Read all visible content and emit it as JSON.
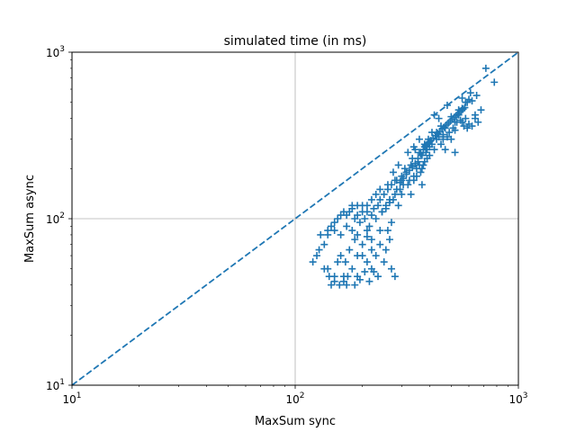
{
  "chart_data": {
    "type": "scatter",
    "title": "simulated time (in ms)",
    "xlabel": "MaxSum sync",
    "ylabel": "MaxSum async",
    "xscale": "log",
    "yscale": "log",
    "xlim": [
      10,
      1000
    ],
    "ylim": [
      10,
      1000
    ],
    "grid": "major decades only",
    "legend": "none",
    "marker": "plus",
    "color": "#1f77b4",
    "x_ticks": [
      {
        "value": 10,
        "base": "10",
        "exp": "1"
      },
      {
        "value": 100,
        "base": "10",
        "exp": "2"
      },
      {
        "value": 1000,
        "base": "10",
        "exp": "3"
      }
    ],
    "y_ticks": [
      {
        "value": 10,
        "base": "10",
        "exp": "1"
      },
      {
        "value": 100,
        "base": "10",
        "exp": "2"
      },
      {
        "value": 1000,
        "base": "10",
        "exp": "3"
      }
    ],
    "reference_line": {
      "style": "dashed",
      "from": [
        10,
        10
      ],
      "to": [
        1000,
        1000
      ]
    },
    "points": [
      [
        715,
        800
      ],
      [
        780,
        660
      ],
      [
        650,
        550
      ],
      [
        610,
        570
      ],
      [
        590,
        500
      ],
      [
        560,
        530
      ],
      [
        540,
        450
      ],
      [
        520,
        380
      ],
      [
        500,
        410
      ],
      [
        480,
        480
      ],
      [
        470,
        350
      ],
      [
        460,
        320
      ],
      [
        450,
        360
      ],
      [
        440,
        400
      ],
      [
        430,
        300
      ],
      [
        420,
        420
      ],
      [
        410,
        330
      ],
      [
        400,
        270
      ],
      [
        395,
        300
      ],
      [
        390,
        230
      ],
      [
        385,
        250
      ],
      [
        380,
        280
      ],
      [
        375,
        210
      ],
      [
        370,
        240
      ],
      [
        365,
        190
      ],
      [
        360,
        300
      ],
      [
        355,
        220
      ],
      [
        350,
        200
      ],
      [
        345,
        260
      ],
      [
        340,
        180
      ],
      [
        335,
        230
      ],
      [
        330,
        210
      ],
      [
        325,
        170
      ],
      [
        320,
        250
      ],
      [
        315,
        190
      ],
      [
        310,
        200
      ],
      [
        305,
        160
      ],
      [
        300,
        180
      ],
      [
        295,
        150
      ],
      [
        290,
        210
      ],
      [
        285,
        170
      ],
      [
        280,
        140
      ],
      [
        275,
        190
      ],
      [
        270,
        160
      ],
      [
        265,
        130
      ],
      [
        260,
        150
      ],
      [
        255,
        120
      ],
      [
        250,
        140
      ],
      [
        245,
        110
      ],
      [
        240,
        130
      ],
      [
        235,
        120
      ],
      [
        230,
        100
      ],
      [
        225,
        115
      ],
      [
        220,
        105
      ],
      [
        215,
        90
      ],
      [
        210,
        120
      ],
      [
        205,
        100
      ],
      [
        200,
        110
      ],
      [
        195,
        95
      ],
      [
        190,
        105
      ],
      [
        185,
        100
      ],
      [
        180,
        115
      ],
      [
        175,
        110
      ],
      [
        170,
        105
      ],
      [
        165,
        110
      ],
      [
        160,
        105
      ],
      [
        155,
        100
      ],
      [
        150,
        95
      ],
      [
        145,
        90
      ],
      [
        140,
        85
      ],
      [
        130,
        80
      ],
      [
        125,
        60
      ],
      [
        120,
        55
      ],
      [
        160,
        60
      ],
      [
        150,
        45
      ],
      [
        145,
        40
      ],
      [
        140,
        50
      ],
      [
        155,
        55
      ],
      [
        165,
        45
      ],
      [
        170,
        40
      ],
      [
        180,
        50
      ],
      [
        190,
        45
      ],
      [
        200,
        60
      ],
      [
        210,
        55
      ],
      [
        220,
        50
      ],
      [
        230,
        60
      ],
      [
        235,
        45
      ],
      [
        250,
        55
      ],
      [
        255,
        65
      ],
      [
        270,
        50
      ],
      [
        280,
        45
      ],
      [
        200,
        70
      ],
      [
        220,
        65
      ],
      [
        190,
        60
      ],
      [
        175,
        65
      ],
      [
        168,
        55
      ],
      [
        135,
        70
      ],
      [
        128,
        65
      ],
      [
        135,
        50
      ],
      [
        142,
        45
      ],
      [
        150,
        42
      ],
      [
        158,
        40
      ],
      [
        165,
        42
      ],
      [
        172,
        45
      ],
      [
        185,
        40
      ],
      [
        195,
        43
      ],
      [
        205,
        48
      ],
      [
        215,
        42
      ],
      [
        225,
        48
      ],
      [
        185,
        75
      ],
      [
        210,
        78
      ],
      [
        240,
        85
      ],
      [
        270,
        95
      ],
      [
        290,
        120
      ],
      [
        300,
        140
      ],
      [
        320,
        160
      ],
      [
        330,
        140
      ],
      [
        340,
        170
      ],
      [
        350,
        180
      ],
      [
        360,
        210
      ],
      [
        370,
        200
      ],
      [
        380,
        220
      ],
      [
        390,
        260
      ],
      [
        400,
        240
      ],
      [
        410,
        280
      ],
      [
        420,
        260
      ],
      [
        430,
        330
      ],
      [
        440,
        310
      ],
      [
        450,
        280
      ],
      [
        460,
        300
      ],
      [
        470,
        260
      ],
      [
        480,
        310
      ],
      [
        490,
        330
      ],
      [
        500,
        300
      ],
      [
        510,
        350
      ],
      [
        520,
        340
      ],
      [
        530,
        380
      ],
      [
        540,
        420
      ],
      [
        550,
        390
      ],
      [
        560,
        380
      ],
      [
        570,
        360
      ],
      [
        580,
        400
      ],
      [
        590,
        350
      ],
      [
        600,
        370
      ],
      [
        620,
        360
      ],
      [
        640,
        400
      ],
      [
        660,
        380
      ],
      [
        520,
        250
      ],
      [
        560,
        460
      ],
      [
        580,
        500
      ],
      [
        600,
        520
      ],
      [
        620,
        510
      ],
      [
        640,
        420
      ],
      [
        680,
        450
      ],
      [
        340,
        270
      ],
      [
        360,
        250
      ],
      [
        380,
        270
      ],
      [
        400,
        290
      ],
      [
        370,
        160
      ],
      [
        300,
        170
      ],
      [
        280,
        170
      ],
      [
        260,
        160
      ],
      [
        240,
        150
      ],
      [
        230,
        140
      ],
      [
        220,
        130
      ],
      [
        210,
        110
      ],
      [
        200,
        120
      ],
      [
        190,
        120
      ],
      [
        180,
        120
      ],
      [
        170,
        90
      ],
      [
        160,
        80
      ],
      [
        150,
        85
      ],
      [
        140,
        80
      ],
      [
        180,
        85
      ],
      [
        190,
        80
      ],
      [
        210,
        85
      ],
      [
        220,
        75
      ],
      [
        240,
        70
      ],
      [
        260,
        85
      ],
      [
        265,
        75
      ],
      [
        245,
        110
      ],
      [
        255,
        115
      ],
      [
        265,
        125
      ],
      [
        275,
        130
      ],
      [
        285,
        150
      ],
      [
        295,
        165
      ],
      [
        305,
        175
      ],
      [
        315,
        185
      ],
      [
        325,
        195
      ],
      [
        335,
        205
      ],
      [
        345,
        215
      ],
      [
        355,
        230
      ],
      [
        365,
        245
      ],
      [
        375,
        260
      ],
      [
        385,
        275
      ],
      [
        395,
        285
      ],
      [
        405,
        295
      ],
      [
        415,
        305
      ],
      [
        425,
        315
      ],
      [
        435,
        325
      ],
      [
        445,
        335
      ],
      [
        455,
        345
      ],
      [
        465,
        355
      ],
      [
        475,
        365
      ],
      [
        485,
        375
      ],
      [
        495,
        385
      ],
      [
        505,
        395
      ],
      [
        515,
        405
      ],
      [
        525,
        415
      ],
      [
        535,
        425
      ],
      [
        545,
        435
      ],
      [
        555,
        445
      ],
      [
        565,
        455
      ],
      [
        575,
        465
      ]
    ]
  }
}
